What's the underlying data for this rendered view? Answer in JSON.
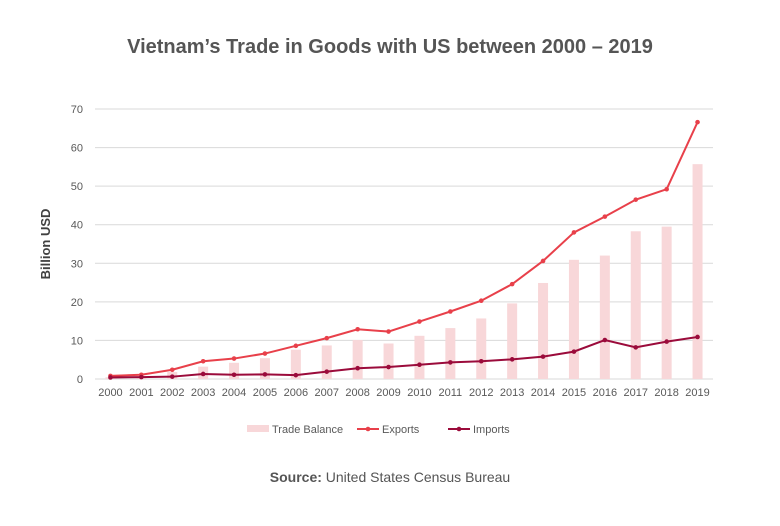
{
  "chart_data": {
    "type": "bar+line",
    "title": "Vietnam’s Trade in Goods with US between 2000 – 2019",
    "ylabel": "Billion USD",
    "xlabel": "",
    "ylim": [
      0,
      70
    ],
    "yticks": [
      0,
      10,
      20,
      30,
      40,
      50,
      60,
      70
    ],
    "grid": true,
    "legend": "bottom",
    "categories": [
      "2000",
      "2001",
      "2002",
      "2003",
      "2004",
      "2005",
      "2006",
      "2007",
      "2008",
      "2009",
      "2010",
      "2011",
      "2012",
      "2013",
      "2014",
      "2015",
      "2016",
      "2017",
      "2018",
      "2019"
    ],
    "series": [
      {
        "name": "Trade Balance",
        "type": "bar",
        "color": "#f8d7d9",
        "values": [
          0.45,
          0.59,
          1.8,
          3.2,
          4.2,
          5.4,
          7.6,
          8.7,
          10.1,
          9.2,
          11.2,
          13.2,
          15.7,
          19.6,
          24.9,
          30.9,
          32.0,
          38.3,
          39.5,
          55.7
        ]
      },
      {
        "name": "Exports",
        "type": "line",
        "color": "#e8404a",
        "values": [
          0.8,
          1.1,
          2.4,
          4.6,
          5.3,
          6.6,
          8.6,
          10.6,
          12.9,
          12.3,
          14.9,
          17.5,
          20.3,
          24.6,
          30.6,
          38.0,
          42.1,
          46.5,
          49.2,
          66.6
        ]
      },
      {
        "name": "Imports",
        "type": "line",
        "color": "#9b0b3b",
        "values": [
          0.4,
          0.5,
          0.6,
          1.3,
          1.1,
          1.2,
          1.0,
          1.9,
          2.8,
          3.1,
          3.7,
          4.3,
          4.6,
          5.1,
          5.8,
          7.1,
          10.1,
          8.2,
          9.7,
          10.9
        ]
      }
    ]
  },
  "source": {
    "label": "Source:",
    "text": " United States Census Bureau"
  }
}
